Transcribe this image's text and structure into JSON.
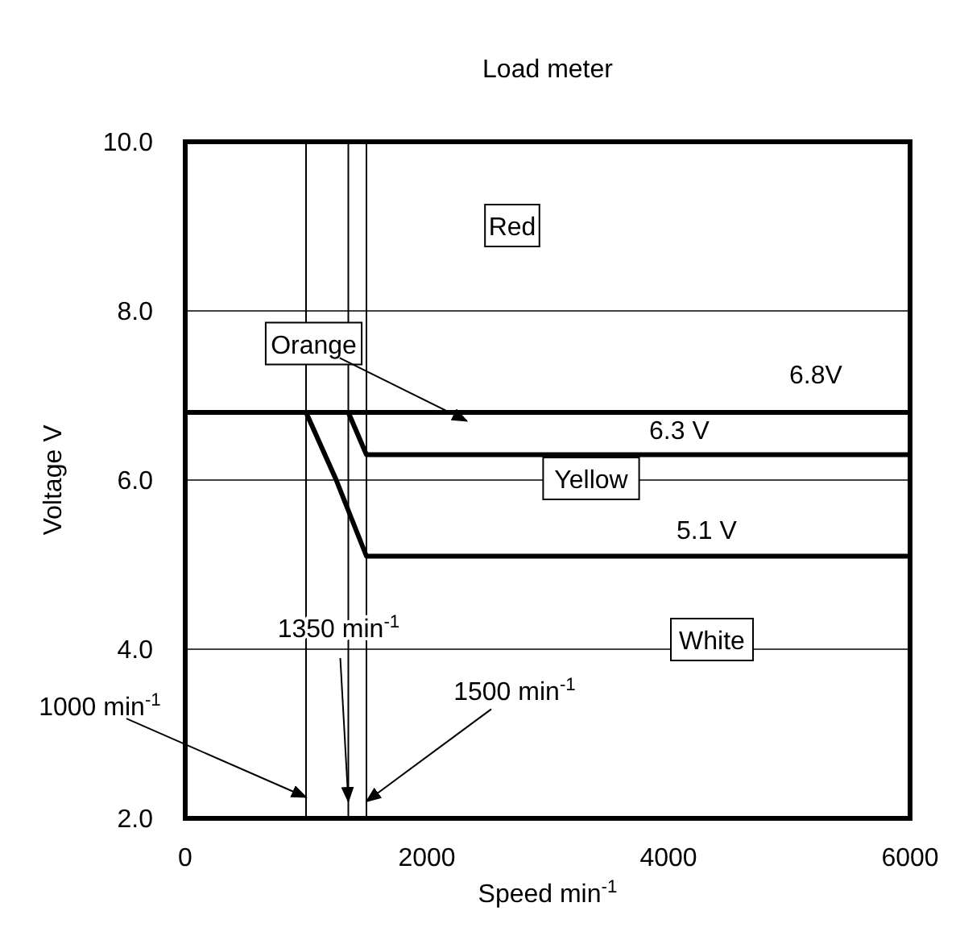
{
  "chart_data": {
    "type": "line",
    "title": "Load meter",
    "xlabel": "Speed   min$^{-1}$",
    "ylabel": "Voltage   V",
    "xlim": [
      0,
      6000
    ],
    "xticks": [
      0,
      2000,
      4000,
      6000
    ],
    "ylim": [
      2,
      10
    ],
    "yticks": [
      {
        "value": 2,
        "label": "2.0"
      },
      {
        "value": 4,
        "label": "4.0"
      },
      {
        "value": 6,
        "label": "6.0"
      },
      {
        "value": 8,
        "label": "8.0"
      },
      {
        "value": 10,
        "label": "10.0"
      }
    ],
    "grid": "y",
    "marker": "none",
    "line_style": "solid",
    "series": [
      {
        "name": "5.1 V",
        "color": "#000000",
        "x": [
          0,
          1000,
          1250,
          1500,
          6000
        ],
        "values": [
          6.8,
          6.8,
          6.0,
          5.1,
          5.1
        ]
      },
      {
        "name": "6.3 V",
        "color": "#000000",
        "x": [
          0,
          1350,
          1500,
          6000
        ],
        "values": [
          6.8,
          6.8,
          6.3,
          6.3
        ]
      },
      {
        "name": "6.8V",
        "color": "#000000",
        "x": [
          0,
          6000
        ],
        "values": [
          6.8,
          6.8
        ]
      }
    ],
    "ref_lines": [
      {
        "axis": "x",
        "value": 1000,
        "color": "#000000"
      },
      {
        "axis": "x",
        "value": 1350,
        "color": "#000000"
      },
      {
        "axis": "x",
        "value": 1500,
        "color": "#000000"
      }
    ],
    "annotations": [
      "Red",
      {
        "text": "Orange",
        "x": 2330,
        "y": 6.7
      },
      "Yellow",
      "White",
      {
        "text": "1000 min$^{-1}$",
        "x": 1000,
        "y": 2.25
      },
      {
        "text": "1350 min$^{-1}$",
        "x": 1350,
        "y": 2.2
      },
      {
        "text": "1500 min$^{-1}$",
        "x": 1500,
        "y": 2.2
      }
    ]
  }
}
